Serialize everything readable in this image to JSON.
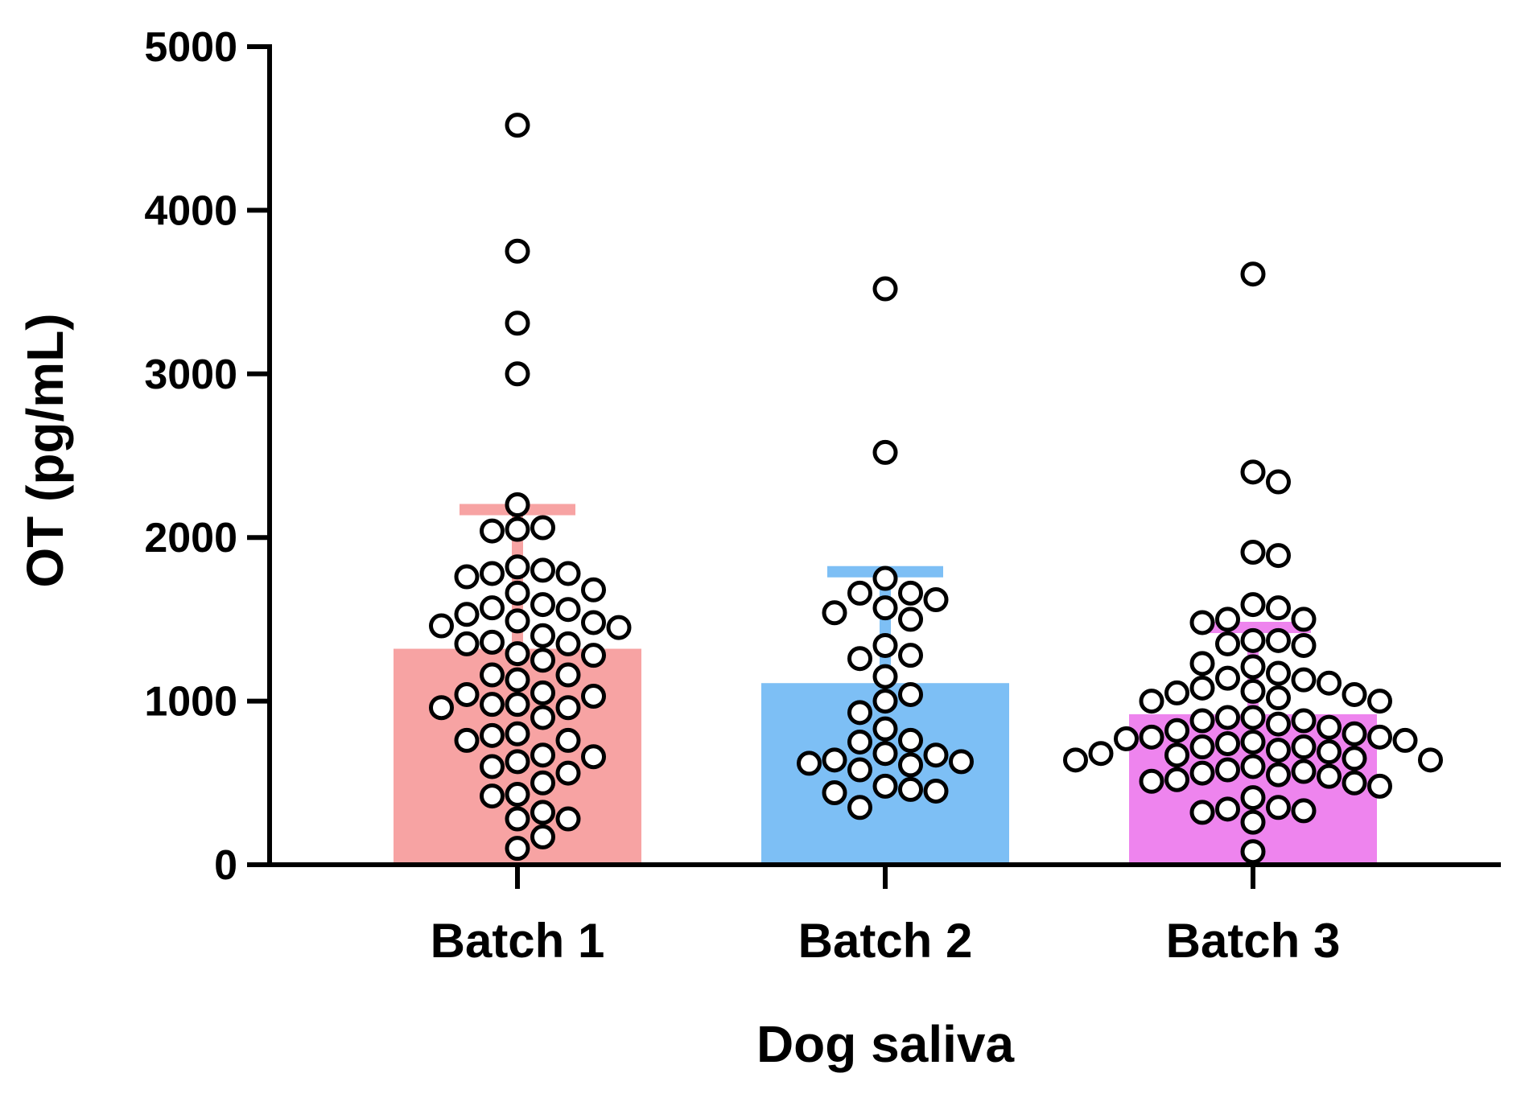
{
  "chart_data": {
    "type": "bar",
    "title": "",
    "xlabel": "Dog saliva",
    "ylabel": "OT (pg/mL)",
    "ylim": [
      0,
      5000
    ],
    "yticks": [
      0,
      1000,
      2000,
      3000,
      4000,
      5000
    ],
    "ytick_labels": [
      "0",
      "1000",
      "2000",
      "3000",
      "4000",
      "5000"
    ],
    "categories": [
      "Batch 1",
      "Batch 2",
      "Batch 3"
    ],
    "colors": [
      "#f7a3a3",
      "#7dbff5",
      "#ee84ee"
    ],
    "values": [
      1320,
      1110,
      920
    ],
    "errors": [
      880,
      710,
      560
    ],
    "points": [
      [
        4520,
        3750,
        3310,
        3000,
        2200,
        2050,
        2040,
        2060,
        1820,
        1780,
        1760,
        1660,
        1680,
        1780,
        1800,
        1590,
        1560,
        1490,
        1460,
        1400,
        1350,
        1360,
        1450,
        1480,
        1530,
        1570,
        1280,
        1250,
        1290,
        1350,
        1160,
        1130,
        1160,
        1050,
        1030,
        980,
        960,
        900,
        960,
        980,
        1040,
        790,
        760,
        660,
        670,
        760,
        800,
        630,
        560,
        430,
        420,
        500,
        600,
        320,
        280,
        170,
        280,
        100
      ],
      [
        3520,
        2520,
        1750,
        1660,
        1570,
        1500,
        1540,
        1620,
        1660,
        1340,
        1260,
        1280,
        1150,
        1000,
        1040,
        930,
        830,
        750,
        670,
        630,
        610,
        580,
        620,
        640,
        680,
        760,
        480,
        450,
        350,
        440,
        460
      ],
      [
        3610,
        2400,
        2340,
        1910,
        1890,
        1590,
        1570,
        1500,
        1370,
        1350,
        1340,
        1370,
        1480,
        1500,
        1230,
        1170,
        1130,
        1080,
        1060,
        1020,
        1050,
        1040,
        1110,
        1140,
        1210,
        1000,
        900,
        880,
        860,
        780,
        800,
        820,
        840,
        880,
        900,
        1000,
        770,
        760,
        740,
        720,
        700,
        680,
        670,
        650,
        640,
        600,
        580,
        570,
        560,
        640,
        690,
        720,
        750,
        780,
        540,
        510,
        500,
        550,
        480,
        520,
        410,
        320,
        340,
        330,
        350,
        260,
        80
      ]
    ]
  }
}
